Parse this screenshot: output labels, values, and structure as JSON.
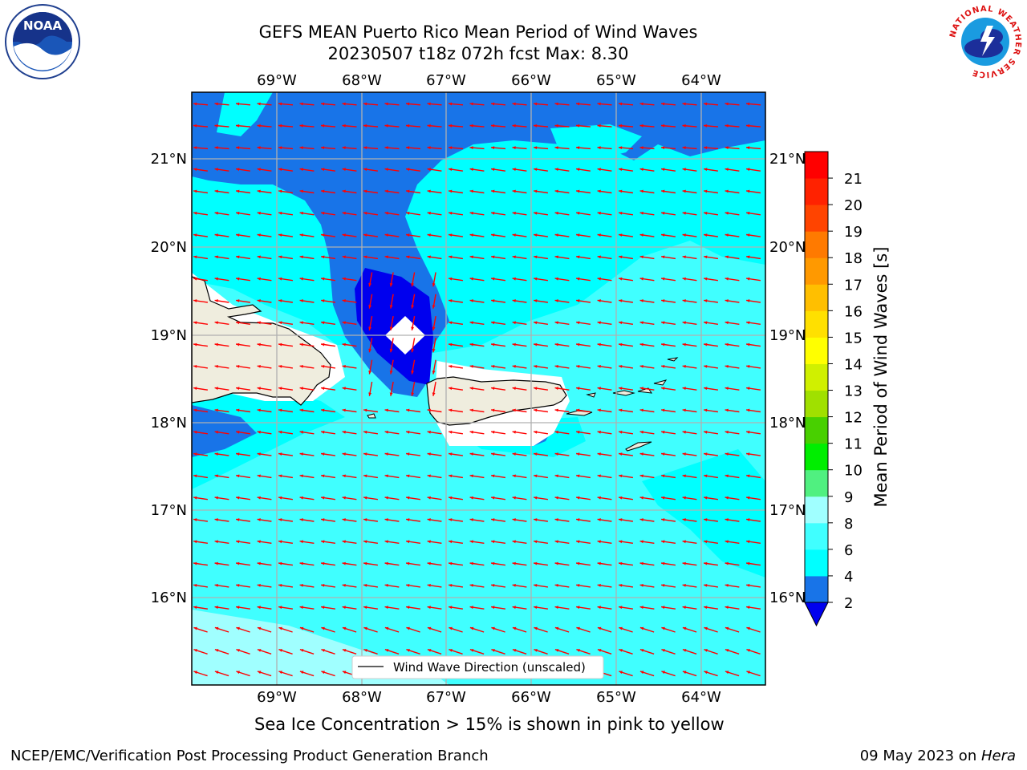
{
  "title": {
    "line1": "GEFS MEAN Puerto Rico Mean Period of Wind Waves",
    "line2": "20230507 t18z 072h fcst   Max: 8.30"
  },
  "map": {
    "lon_labels_top": [
      "69°W",
      "68°W",
      "67°W",
      "66°W",
      "65°W",
      "64°W"
    ],
    "lon_labels_bottom": [
      "69°W",
      "68°W",
      "67°W",
      "66°W",
      "65°W",
      "64°W"
    ],
    "lat_labels_left": [
      "21°N",
      "20°N",
      "19°N",
      "18°N",
      "17°N",
      "16°N"
    ],
    "lat_labels_right": [
      "21°N",
      "20°N",
      "19°N",
      "18°N",
      "17°N",
      "16°N"
    ],
    "legend_label": "Wind Wave Direction (unscaled)",
    "arrow_color": "#ff0000",
    "land_color": "#efedde"
  },
  "colorbar": {
    "label": "Mean Period of Wind Waves [s]",
    "ticks": [
      "2",
      "4",
      "6",
      "8",
      "9",
      "10",
      "11",
      "12",
      "13",
      "14",
      "15",
      "16",
      "17",
      "18",
      "19",
      "20",
      "21"
    ],
    "colors": [
      "#0000ee",
      "#1874e8",
      "#00ffff",
      "#40ffff",
      "#a0ffff",
      "#50f080",
      "#00ee00",
      "#48d000",
      "#a0e000",
      "#d0f000",
      "#ffff00",
      "#ffe000",
      "#ffbf00",
      "#ff9900",
      "#ff7a00",
      "#ff4400",
      "#ff2200",
      "#ff0000"
    ]
  },
  "ice_note": "Sea Ice Concentration > 15% is shown in pink to yellow",
  "footer": {
    "left": "NCEP/EMC/Verification Post Processing Product Generation Branch",
    "right_prefix": "09 May 2023 on ",
    "right_host": "Hera"
  },
  "logos": {
    "noaa_text": "NOAA",
    "nws_text": "NATIONAL WEATHER SERVICE"
  }
}
